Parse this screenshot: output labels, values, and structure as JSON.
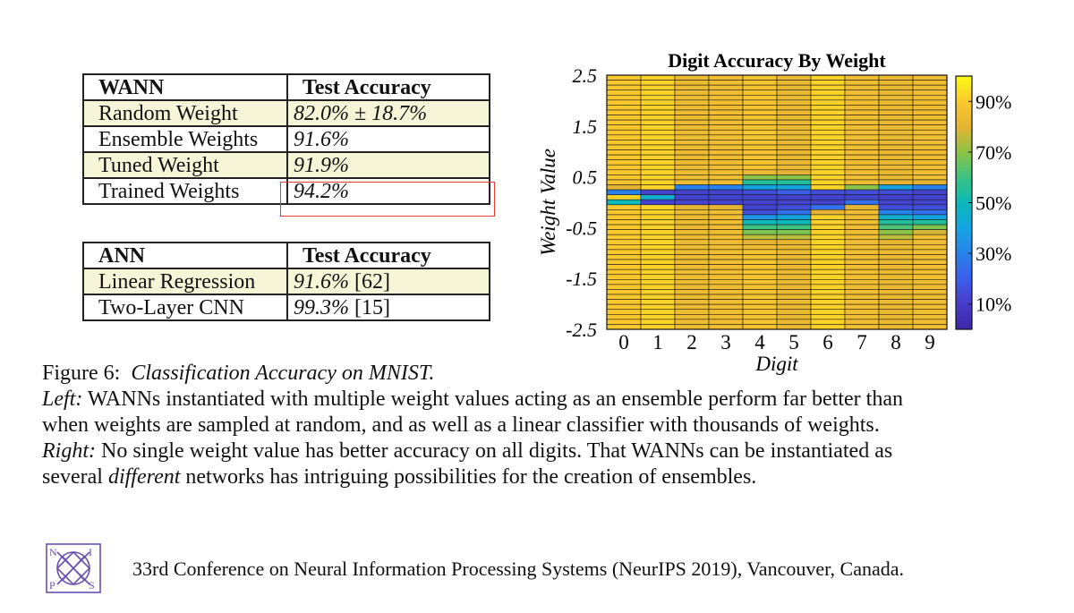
{
  "wann_table": {
    "headers": [
      "WANN",
      "Test Accuracy"
    ],
    "rows": [
      {
        "label": "Random Weight",
        "value": "82.0% ± 18.7%"
      },
      {
        "label": "Ensemble Weights",
        "value": "91.6%"
      },
      {
        "label": "Tuned Weight",
        "value": "91.9%"
      },
      {
        "label": "Trained Weights",
        "value": "94.2%"
      }
    ]
  },
  "ann_table": {
    "headers": [
      "ANN",
      "Test Accuracy"
    ],
    "rows": [
      {
        "label": "Linear Regression",
        "value": "91.6%",
        "cite": "[62]"
      },
      {
        "label": "Two-Layer CNN",
        "value": "99.3%",
        "cite": "[15]"
      }
    ]
  },
  "highlight_color": "#e33b2e",
  "chart_data": {
    "type": "heatmap",
    "title": "Digit Accuracy By Weight",
    "xlabel": "Digit",
    "ylabel": "Weight Value",
    "x_categories": [
      "0",
      "1",
      "2",
      "3",
      "4",
      "5",
      "6",
      "7",
      "8",
      "9"
    ],
    "ylim": [
      -2.5,
      2.5
    ],
    "y_ticks": [
      "2.5",
      "1.5",
      "0.5",
      "-0.5",
      "-1.5",
      "-2.5"
    ],
    "y_tick_values": [
      2.5,
      1.5,
      0.5,
      -0.5,
      -1.5,
      -2.5
    ],
    "colorbar_ticks": [
      "90%",
      "70%",
      "50%",
      "30%",
      "10%"
    ],
    "colorbar_tick_values": [
      90,
      70,
      50,
      30,
      10
    ],
    "colorbar_range": [
      0,
      100
    ],
    "weight_rows": [
      2.5,
      2.4,
      2.3,
      2.2,
      2.1,
      2.0,
      1.9,
      1.8,
      1.7,
      1.6,
      1.5,
      1.4,
      1.3,
      1.2,
      1.1,
      1.0,
      0.9,
      0.8,
      0.7,
      0.6,
      0.5,
      0.4,
      0.3,
      0.2,
      0.1,
      0.0,
      -0.1,
      -0.2,
      -0.3,
      -0.4,
      -0.5,
      -0.6,
      -0.7,
      -0.8,
      -0.9,
      -1.0,
      -1.1,
      -1.2,
      -1.3,
      -1.4,
      -1.5,
      -1.6,
      -1.7,
      -1.8,
      -1.9,
      -2.0,
      -2.1,
      -2.2,
      -2.3,
      -2.4,
      -2.5
    ],
    "accuracy_by_digit": [
      [
        90,
        90,
        90,
        90,
        90,
        90,
        90,
        90,
        90,
        90,
        90,
        90,
        90,
        90,
        90,
        90,
        90,
        90,
        90,
        90,
        90,
        88,
        80,
        30,
        92,
        50,
        90,
        90,
        90,
        90,
        90,
        90,
        90,
        90,
        90,
        90,
        90,
        90,
        90,
        90,
        90,
        90,
        90,
        90,
        90,
        90,
        90,
        90,
        90,
        90,
        90
      ],
      [
        92,
        92,
        92,
        92,
        92,
        92,
        92,
        92,
        92,
        92,
        92,
        92,
        92,
        92,
        92,
        92,
        92,
        92,
        92,
        92,
        92,
        92,
        92,
        12,
        45,
        12,
        92,
        92,
        92,
        92,
        92,
        92,
        92,
        92,
        92,
        92,
        92,
        92,
        92,
        92,
        92,
        92,
        92,
        92,
        92,
        92,
        92,
        92,
        92,
        92,
        92
      ],
      [
        84,
        84,
        84,
        84,
        84,
        84,
        84,
        84,
        84,
        84,
        84,
        84,
        84,
        84,
        84,
        84,
        84,
        84,
        84,
        84,
        84,
        84,
        30,
        12,
        12,
        12,
        80,
        84,
        84,
        84,
        84,
        84,
        84,
        84,
        84,
        84,
        84,
        84,
        84,
        84,
        84,
        84,
        84,
        84,
        84,
        84,
        84,
        84,
        84,
        84,
        84
      ],
      [
        85,
        85,
        85,
        85,
        85,
        85,
        85,
        85,
        85,
        85,
        85,
        85,
        85,
        85,
        85,
        85,
        85,
        85,
        85,
        85,
        85,
        85,
        30,
        12,
        12,
        12,
        80,
        85,
        85,
        85,
        85,
        85,
        85,
        85,
        85,
        85,
        85,
        85,
        85,
        85,
        85,
        85,
        85,
        85,
        85,
        85,
        85,
        85,
        85,
        85,
        85
      ],
      [
        88,
        88,
        88,
        88,
        88,
        88,
        88,
        88,
        88,
        88,
        88,
        88,
        88,
        88,
        88,
        88,
        88,
        88,
        88,
        82,
        70,
        55,
        40,
        15,
        12,
        12,
        12,
        15,
        35,
        50,
        60,
        68,
        75,
        80,
        85,
        88,
        88,
        88,
        88,
        88,
        88,
        88,
        88,
        88,
        88,
        88,
        88,
        88,
        88,
        88,
        88
      ],
      [
        83,
        83,
        83,
        83,
        83,
        83,
        83,
        83,
        83,
        83,
        83,
        83,
        83,
        83,
        83,
        83,
        83,
        83,
        83,
        80,
        70,
        55,
        40,
        20,
        12,
        12,
        15,
        25,
        40,
        50,
        60,
        68,
        75,
        80,
        82,
        83,
        83,
        83,
        83,
        83,
        83,
        83,
        83,
        83,
        83,
        83,
        83,
        83,
        83,
        83,
        83
      ],
      [
        92,
        92,
        92,
        92,
        92,
        92,
        92,
        92,
        92,
        92,
        92,
        92,
        92,
        92,
        92,
        92,
        92,
        92,
        92,
        92,
        92,
        92,
        92,
        15,
        12,
        12,
        25,
        80,
        92,
        92,
        92,
        92,
        92,
        92,
        92,
        92,
        92,
        92,
        92,
        92,
        92,
        92,
        92,
        92,
        92,
        92,
        92,
        92,
        92,
        92,
        92
      ],
      [
        85,
        85,
        85,
        85,
        85,
        85,
        85,
        85,
        85,
        85,
        85,
        85,
        85,
        85,
        85,
        85,
        85,
        85,
        85,
        85,
        85,
        85,
        70,
        15,
        12,
        25,
        80,
        85,
        85,
        85,
        85,
        85,
        85,
        85,
        85,
        85,
        85,
        85,
        85,
        85,
        85,
        85,
        85,
        85,
        85,
        85,
        85,
        85,
        85,
        85,
        85
      ],
      [
        83,
        83,
        83,
        83,
        83,
        83,
        83,
        83,
        83,
        83,
        83,
        83,
        83,
        83,
        83,
        83,
        83,
        83,
        83,
        83,
        83,
        80,
        40,
        15,
        12,
        12,
        15,
        30,
        45,
        55,
        62,
        70,
        75,
        80,
        83,
        83,
        83,
        83,
        83,
        83,
        83,
        83,
        83,
        83,
        83,
        83,
        83,
        83,
        83,
        83,
        83
      ],
      [
        85,
        85,
        85,
        85,
        85,
        85,
        85,
        85,
        85,
        85,
        85,
        85,
        85,
        85,
        85,
        85,
        85,
        85,
        85,
        85,
        85,
        80,
        30,
        12,
        12,
        12,
        15,
        25,
        40,
        55,
        68,
        78,
        85,
        85,
        85,
        85,
        85,
        85,
        85,
        85,
        85,
        85,
        85,
        85,
        85,
        85,
        85,
        85,
        85,
        85,
        85
      ]
    ]
  },
  "caption": {
    "figure_label": "Figure 6:",
    "figure_title": "Classification Accuracy on MNIST.",
    "left_label": "Left:",
    "left_line1": "WANNs instantiated with multiple weight values acting as an ensemble perform far better than",
    "left_line2": "when weights are sampled at random, and as well as a linear classifier with thousands of weights.",
    "right_label": "Right:",
    "right_line1": "No single weight value has better accuracy on all digits. That WANNs can be instantiated as",
    "right_line2_pre": "several",
    "right_line2_em": "different",
    "right_line2_post": "networks has intriguing possibilities for the creation of ensembles."
  },
  "footer": {
    "logo_letters": [
      "N",
      "I",
      "P",
      "S"
    ],
    "text": "33rd Conference on Neural Information Processing Systems (NeurIPS 2019), Vancouver, Canada.",
    "logo_color": "#6a4fb0"
  }
}
